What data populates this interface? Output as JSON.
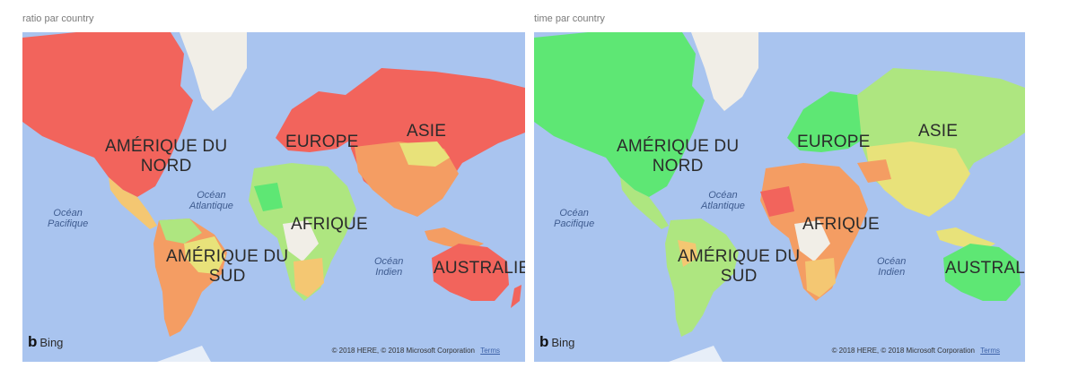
{
  "panels": [
    {
      "title": "ratio par country",
      "labels": {
        "north_america": "AMÉRIQUE DU\nNORD",
        "europe": "EUROPE",
        "asia": "ASIE",
        "africa": "AFRIQUE",
        "south_america": "AMÉRIQUE DU\nSUD",
        "australia": "AUSTRALIE",
        "atlantic": "Océan\nAtlantique",
        "pacific": "Océan\nPacifique",
        "indian": "Océan\nIndien"
      },
      "bing_label": "Bing",
      "copyright": "© 2018 HERE, © 2018 Microsoft Corporation",
      "terms": "Terms"
    },
    {
      "title": "time par country",
      "labels": {
        "north_america": "AMÉRIQUE DU\nNORD",
        "europe": "EUROPE",
        "asia": "ASIE",
        "africa": "AFRIQUE",
        "south_america": "AMÉRIQUE DU\nSUD",
        "australia": "AUSTRALIE",
        "atlantic": "Océan\nAtlantique",
        "pacific": "Océan\nPacifique",
        "indian": "Océan\nIndien"
      },
      "bing_label": "Bing",
      "copyright": "© 2018 HERE, © 2018 Microsoft Corporation",
      "terms": "Terms"
    }
  ],
  "colors": {
    "ocean": "#a9c4ef",
    "land_neutral": "#f1eee7",
    "high": "#f2645c",
    "mid_high": "#f49d63",
    "mid": "#f4c772",
    "mid_low": "#e8e27a",
    "low": "#aee680",
    "lowest": "#5ee774"
  }
}
